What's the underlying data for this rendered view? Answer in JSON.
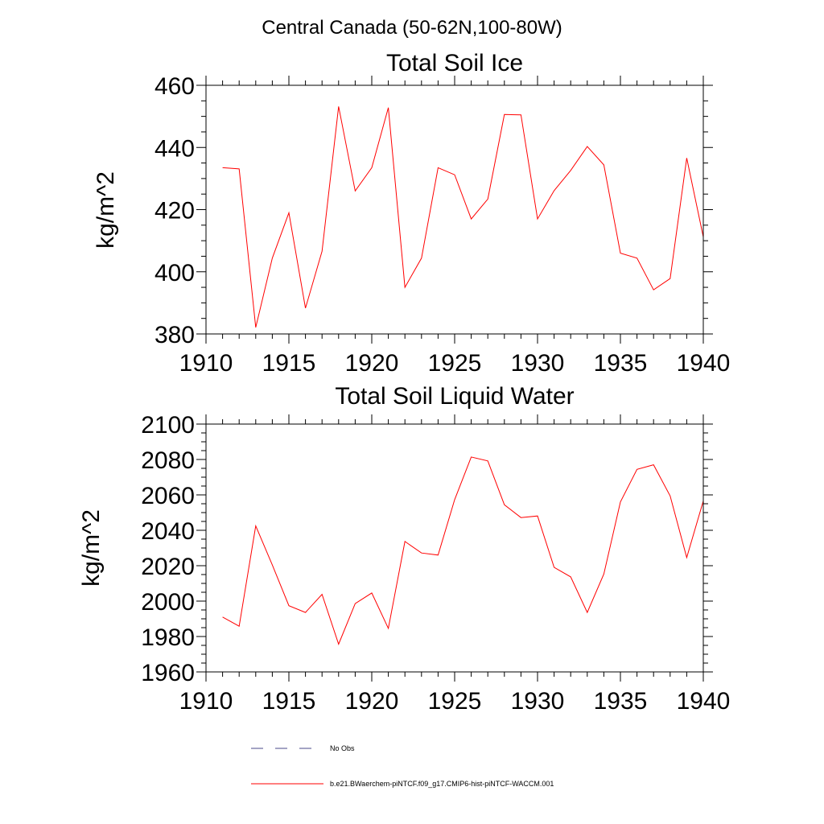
{
  "figure": {
    "suptitle": "Central Canada (50-62N,100-80W)"
  },
  "colors": {
    "model_line": "#ff0000",
    "obs_line": "#4a4a8a",
    "axes": "#000000"
  },
  "chart_data": [
    {
      "type": "line",
      "title": "Total Soil Ice",
      "ylabel": "kg/m^2",
      "xlabel": "",
      "xlim": [
        1910,
        1940
      ],
      "ylim": [
        380,
        460
      ],
      "xticks": [
        1910,
        1915,
        1920,
        1925,
        1930,
        1935,
        1940
      ],
      "yticks": [
        380,
        400,
        420,
        440,
        460
      ],
      "grid": false,
      "series": [
        {
          "name": "b.e21.BWaerchem-piNTCF.f09_g17.CMIP6-hist-piNTCF-WACCM.001",
          "x": [
            1911,
            1912,
            1913,
            1914,
            1915,
            1916,
            1917,
            1918,
            1919,
            1920,
            1921,
            1922,
            1923,
            1924,
            1925,
            1926,
            1927,
            1928,
            1929,
            1930,
            1931,
            1932,
            1933,
            1934,
            1935,
            1936,
            1937,
            1938,
            1939,
            1940
          ],
          "values": [
            433.5,
            433.1,
            382.1,
            404.4,
            419.0,
            388.3,
            406.6,
            453.2,
            426.0,
            433.5,
            452.8,
            395.0,
            404.4,
            433.5,
            431.2,
            417.0,
            423.4,
            450.6,
            450.5,
            417.0,
            426.1,
            432.6,
            440.3,
            434.4,
            406.0,
            404.4,
            394.2,
            397.8,
            436.6,
            411.2
          ]
        }
      ]
    },
    {
      "type": "line",
      "title": "Total Soil Liquid Water",
      "ylabel": "kg/m^2",
      "xlabel": "",
      "xlim": [
        1910,
        1940
      ],
      "ylim": [
        1960,
        2100
      ],
      "xticks": [
        1910,
        1915,
        1920,
        1925,
        1930,
        1935,
        1940
      ],
      "yticks": [
        1960,
        1980,
        2000,
        2020,
        2040,
        2060,
        2080,
        2100
      ],
      "grid": false,
      "series": [
        {
          "name": "b.e21.BWaerchem-piNTCF.f09_g17.CMIP6-hist-piNTCF-WACCM.001",
          "x": [
            1911,
            1912,
            1913,
            1914,
            1915,
            1916,
            1917,
            1918,
            1919,
            1920,
            1921,
            1922,
            1923,
            1924,
            1925,
            1926,
            1927,
            1928,
            1929,
            1930,
            1931,
            1932,
            1933,
            1934,
            1935,
            1936,
            1937,
            1938,
            1939,
            1940
          ],
          "values": [
            1991.0,
            1985.8,
            2042.5,
            2020.4,
            1997.4,
            1993.6,
            2003.8,
            1975.7,
            1998.6,
            2004.6,
            1984.6,
            2033.7,
            2027.2,
            2026.0,
            2057.3,
            2081.4,
            2079.2,
            2054.4,
            2047.2,
            2048.1,
            2019.1,
            2013.7,
            1993.6,
            2015.3,
            2056.0,
            2074.4,
            2077.0,
            2059.4,
            2024.6,
            2056.6
          ]
        }
      ]
    }
  ],
  "legend": {
    "placement": "bottom-left",
    "entries": [
      {
        "label": "No Obs",
        "style": "dashed"
      },
      {
        "label": "b.e21.BWaerchem-piNTCF.f09_g17.CMIP6-hist-piNTCF-WACCM.001",
        "style": "solid"
      }
    ]
  }
}
